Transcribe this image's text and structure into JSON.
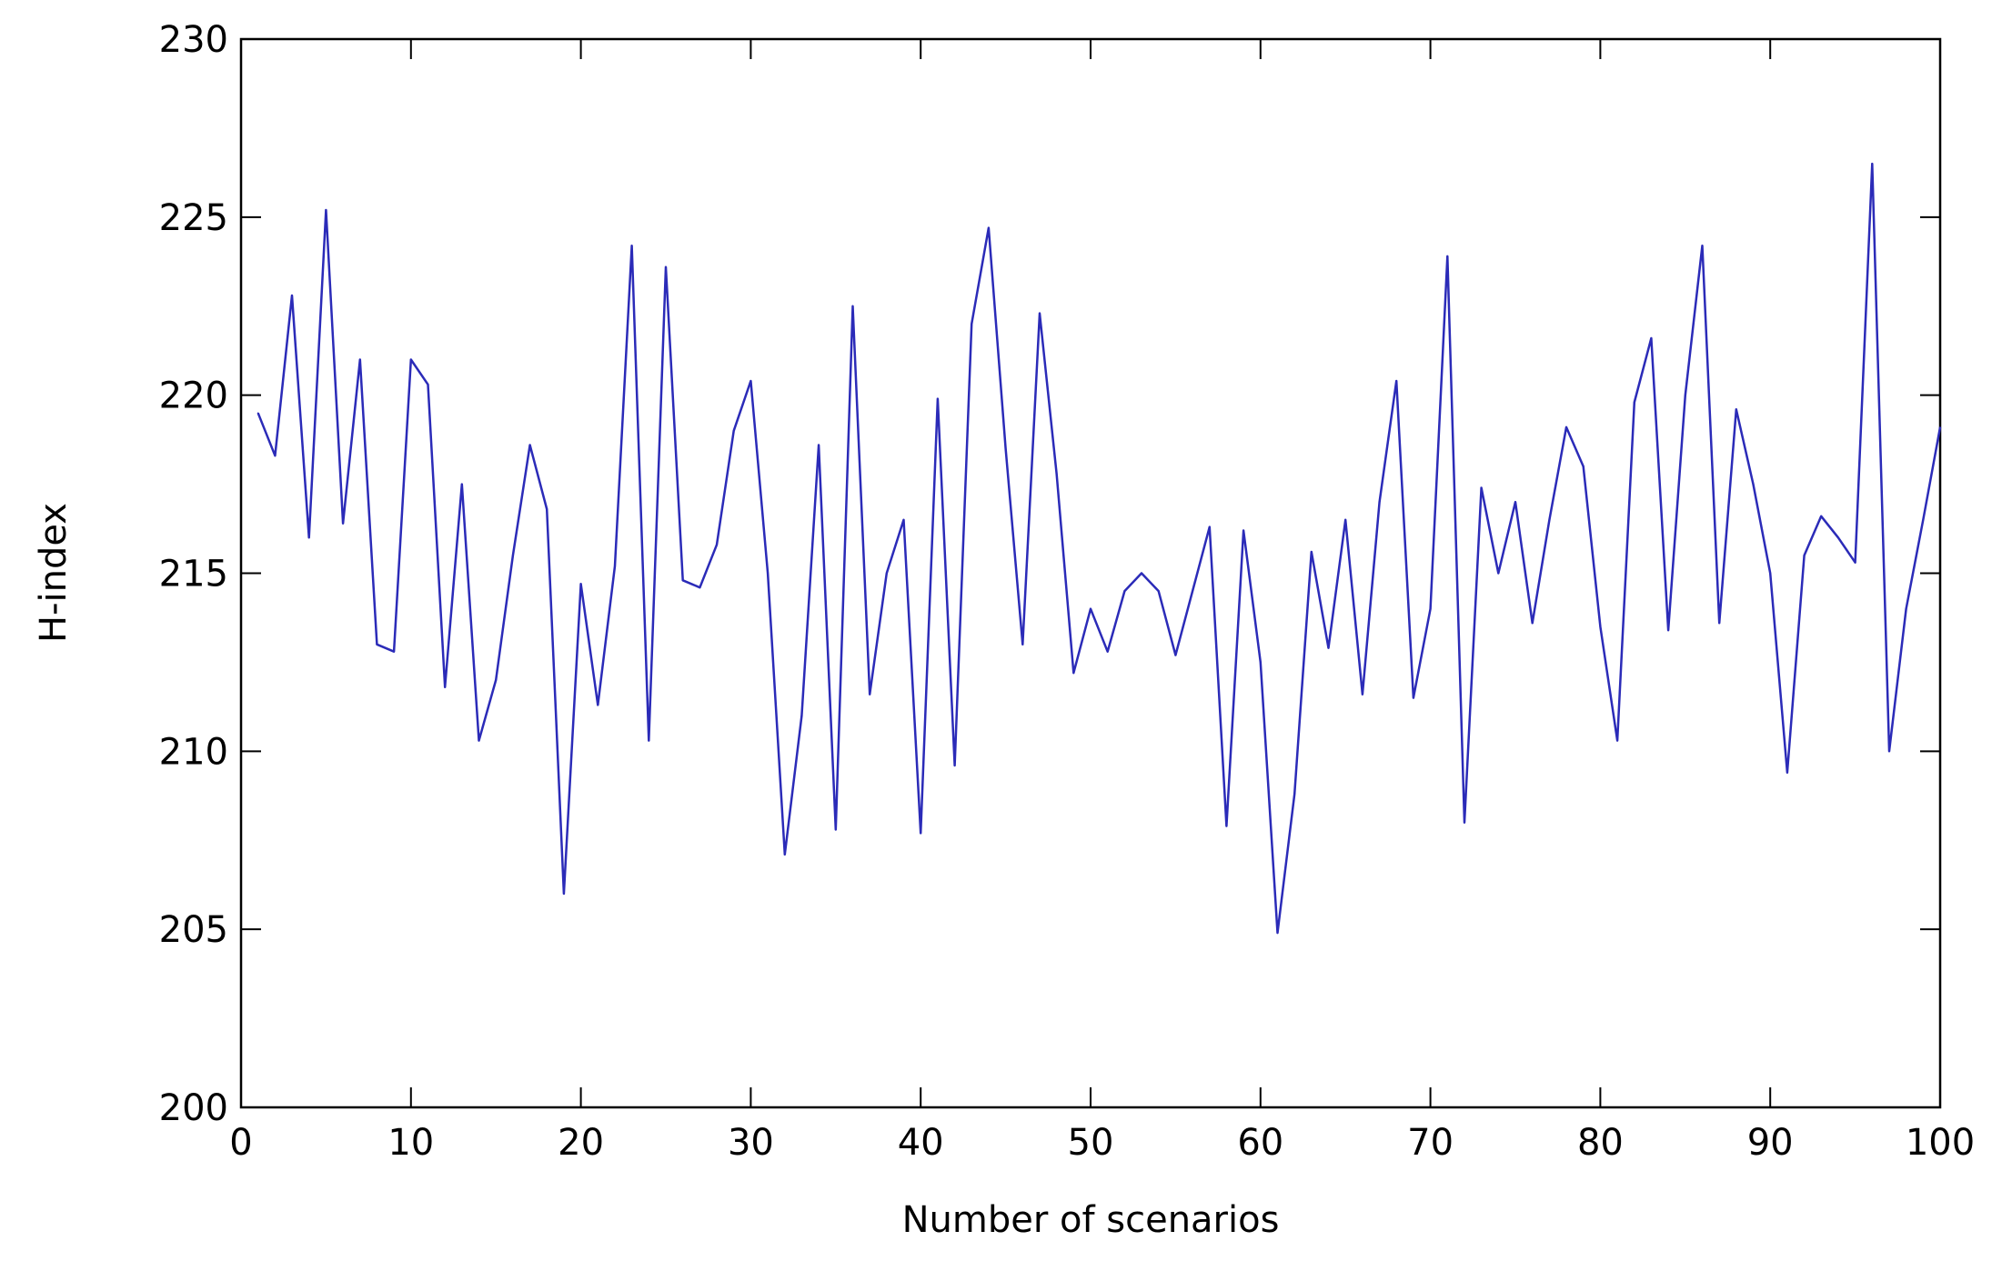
{
  "chart_data": {
    "type": "line",
    "title": "",
    "xlabel": "Number of scenarios",
    "ylabel": "H-index",
    "xlim": [
      0,
      100
    ],
    "ylim": [
      200,
      230
    ],
    "xticks": [
      0,
      10,
      20,
      30,
      40,
      50,
      60,
      70,
      80,
      90,
      100
    ],
    "yticks": [
      200,
      205,
      210,
      215,
      220,
      225,
      230
    ],
    "grid": false,
    "legend": "none",
    "line_color": "#2B2BB8",
    "series": [
      {
        "x": [
          1,
          2,
          3,
          4,
          5,
          6,
          7,
          8,
          9,
          10,
          11,
          12,
          13,
          14,
          15,
          16,
          17,
          18,
          19,
          20,
          21,
          22,
          23,
          24,
          25,
          26,
          27,
          28,
          29,
          30,
          31,
          32,
          33,
          34,
          35,
          36,
          37,
          38,
          39,
          40,
          41,
          42,
          43,
          44,
          45,
          46,
          47,
          48,
          49,
          50,
          51,
          52,
          53,
          54,
          55,
          56,
          57,
          58,
          59,
          60,
          61,
          62,
          63,
          64,
          65,
          66,
          67,
          68,
          69,
          70,
          71,
          72,
          73,
          74,
          75,
          76,
          77,
          78,
          79,
          80,
          81,
          82,
          83,
          84,
          85,
          86,
          87,
          88,
          89,
          90,
          91,
          92,
          93,
          94,
          95,
          96,
          97,
          98,
          99,
          100
        ],
        "values": [
          219.5,
          218.3,
          222.8,
          216.0,
          225.2,
          216.4,
          221.0,
          213.0,
          212.8,
          221.0,
          220.3,
          211.8,
          217.5,
          210.3,
          212.0,
          215.5,
          218.6,
          216.8,
          206.0,
          214.7,
          211.3,
          215.2,
          224.2,
          210.3,
          223.6,
          214.8,
          214.6,
          215.8,
          219.0,
          220.4,
          215.0,
          207.1,
          211.0,
          218.6,
          207.8,
          222.5,
          211.6,
          215.0,
          216.5,
          207.7,
          219.9,
          209.6,
          222.0,
          224.7,
          218.5,
          213.0,
          222.3,
          217.8,
          212.2,
          214.0,
          212.8,
          214.5,
          215.0,
          214.5,
          212.7,
          214.5,
          216.3,
          207.9,
          216.2,
          212.5,
          204.9,
          208.8,
          215.6,
          212.9,
          216.5,
          211.6,
          217.0,
          220.4,
          211.5,
          214.0,
          223.9,
          208.0,
          217.4,
          215.0,
          217.0,
          213.6,
          216.5,
          219.1,
          218.0,
          213.5,
          210.3,
          219.8,
          221.6,
          213.4,
          220.0,
          224.2,
          213.6,
          219.6,
          217.5,
          215.0,
          209.4,
          215.5,
          216.6,
          216.0,
          215.3,
          226.5,
          210.0,
          214.0,
          216.5,
          219.1
        ]
      }
    ]
  }
}
